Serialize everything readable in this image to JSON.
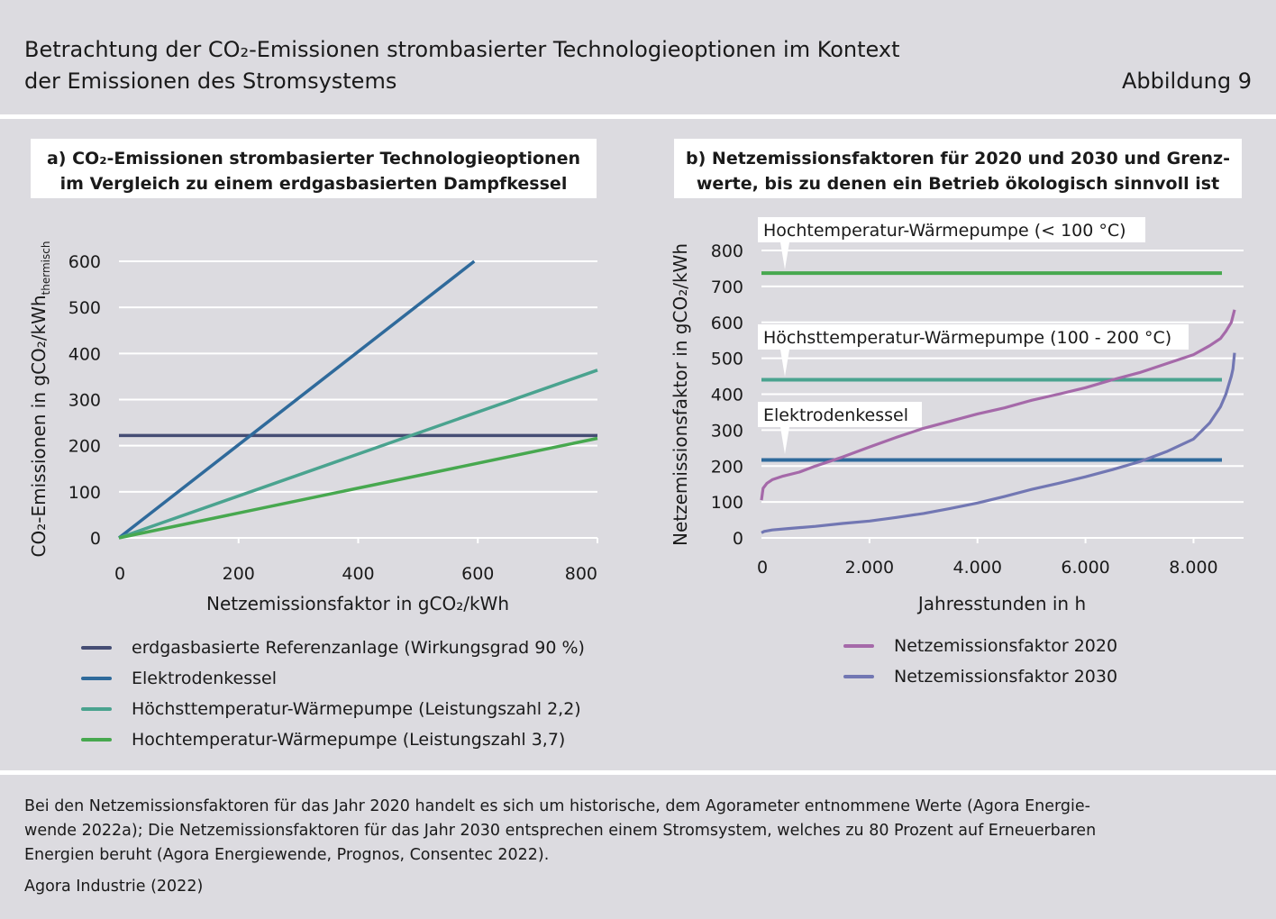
{
  "header": {
    "title_line1": "Betrachtung der CO₂-Emissionen strombasierter Technologieoptionen im Kontext",
    "title_line2": "der Emissionen des Stromsystems",
    "figure_label": "Abbildung 9"
  },
  "colors": {
    "background": "#dcdbe0",
    "reference": "#454d74",
    "elektrodenkessel": "#2f6a9b",
    "hoechsttemperatur": "#4aa38f",
    "hochtemperatur": "#47a84f",
    "netz2020": "#a569a9",
    "netz2030": "#7277b3"
  },
  "chart_data": [
    {
      "type": "line",
      "title_line1": "a) CO₂-Emissionen strombasierter Technologieoptionen",
      "title_line2": "im Vergleich zu einem erdgasbasierten Dampfkessel",
      "xlabel": "Netzemissionsfaktor in gCO₂/kWh",
      "ylabel_main": "CO₂-Emissionen in gCO₂/kWh",
      "ylabel_sub": "thermisch",
      "xlim": [
        0,
        800
      ],
      "ylim": [
        0,
        600
      ],
      "xticks": [
        0,
        200,
        400,
        600,
        800
      ],
      "xtick_labels": [
        "0",
        "200",
        "400",
        "600",
        "800"
      ],
      "yticks": [
        0,
        100,
        200,
        300,
        400,
        500,
        600
      ],
      "ytick_labels": [
        "0",
        "100",
        "200",
        "300",
        "400",
        "500",
        "600"
      ],
      "grid": true,
      "series": [
        {
          "name": "erdgasbasierte Referenzanlage (Wirkungsgrad 90 %)",
          "color": "#454d74",
          "x": [
            0,
            800
          ],
          "y": [
            222,
            222
          ]
        },
        {
          "name": "Elektrodenkessel",
          "color": "#2f6a9b",
          "x": [
            0,
            594
          ],
          "y": [
            0,
            600
          ]
        },
        {
          "name": "Höchsttemperatur-Wärmepumpe (Leistungszahl 2,2)",
          "color": "#4aa38f",
          "x": [
            0,
            800
          ],
          "y": [
            0,
            364
          ]
        },
        {
          "name": "Hochtemperatur-Wärmepumpe (Leistungszahl 3,7)",
          "color": "#47a84f",
          "x": [
            0,
            800
          ],
          "y": [
            0,
            216
          ]
        }
      ]
    },
    {
      "type": "line",
      "title_line1": "b) Netzemissionsfaktoren für 2020 und 2030 und Grenz-",
      "title_line2": "werte, bis zu denen ein Betrieb ökologisch sinnvoll ist",
      "xlabel": "Jahresstunden in h",
      "ylabel": "Netzemissionsfaktor in gCO₂/kWh",
      "xlim": [
        0,
        8760
      ],
      "ylim": [
        0,
        800
      ],
      "xticks": [
        0,
        2000,
        4000,
        6000,
        8000
      ],
      "xtick_labels": [
        "0",
        "2.000",
        "4.000",
        "6.000",
        "8.000"
      ],
      "yticks": [
        0,
        100,
        200,
        300,
        400,
        500,
        600,
        700,
        800
      ],
      "ytick_labels": [
        "0",
        "100",
        "200",
        "300",
        "400",
        "500",
        "600",
        "700",
        "800"
      ],
      "grid": true,
      "thresholds": [
        {
          "label": "Hochtemperatur-Wärmepumpe (< 100 °C)",
          "value": 737,
          "color": "#47a84f"
        },
        {
          "label": "Höchsttemperatur-Wärmepumpe (100 - 200 °C)",
          "value": 440,
          "color": "#4aa38f"
        },
        {
          "label": "Elektrodenkessel",
          "value": 217,
          "color": "#2f6a9b"
        }
      ],
      "series": [
        {
          "name": "Netzemissionsfaktor 2020",
          "color": "#a569a9",
          "x": [
            0,
            30,
            100,
            200,
            400,
            700,
            1000,
            1500,
            2000,
            2500,
            3000,
            3500,
            4000,
            4500,
            5000,
            5500,
            6000,
            6500,
            7000,
            7500,
            8000,
            8300,
            8500,
            8600,
            8700,
            8760
          ],
          "y": [
            105,
            138,
            152,
            162,
            172,
            183,
            200,
            225,
            253,
            280,
            305,
            325,
            345,
            362,
            383,
            400,
            418,
            440,
            460,
            485,
            510,
            535,
            555,
            575,
            600,
            635
          ]
        },
        {
          "name": "Netzemissionsfaktor 2030",
          "color": "#7277b3",
          "x": [
            0,
            50,
            200,
            500,
            1000,
            1500,
            2000,
            2500,
            3000,
            3500,
            4000,
            4500,
            5000,
            5500,
            6000,
            6500,
            7000,
            7500,
            8000,
            8300,
            8500,
            8600,
            8650,
            8700,
            8730,
            8760
          ],
          "y": [
            14,
            18,
            22,
            26,
            32,
            40,
            47,
            57,
            68,
            82,
            97,
            115,
            135,
            152,
            170,
            190,
            212,
            240,
            275,
            320,
            365,
            400,
            425,
            450,
            470,
            515
          ]
        }
      ]
    }
  ],
  "footer": {
    "note_line1": "Bei den Netzemissionsfaktoren für das Jahr 2020 handelt es sich um historische, dem Agorameter entnommene Werte (Agora Energie-",
    "note_line2": "wende 2022a); Die Netzemissionsfaktoren für das Jahr 2030 entsprechen einem Stromsystem, welches zu 80 Prozent auf Erneuerbaren",
    "note_line3": "Energien beruht (Agora Energiewende, Prognos, Consentec 2022).",
    "source": "Agora Industrie (2022)"
  }
}
